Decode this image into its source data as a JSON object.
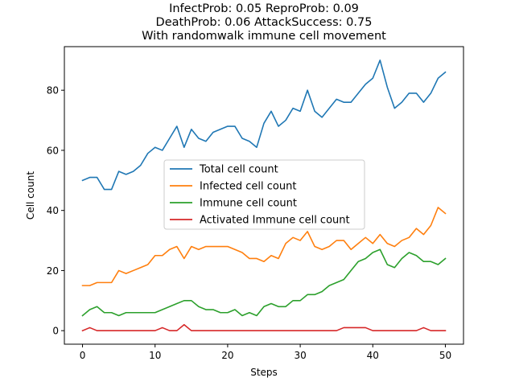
{
  "chart_data": {
    "type": "line",
    "title": [
      "InfectProb: 0.05 ReproProb: 0.09",
      "DeathProb: 0.06 AttackSuccess: 0.75",
      "With randomwalk immune cell movement"
    ],
    "xlabel": "Steps",
    "ylabel": "Cell count",
    "xlim": [
      -2.5,
      52.5
    ],
    "ylim": [
      -4.5,
      94.5
    ],
    "xticks": [
      0,
      10,
      20,
      30,
      40,
      50
    ],
    "yticks": [
      0,
      20,
      40,
      60,
      80
    ],
    "grid": false,
    "legend_position": "center",
    "x": [
      0,
      1,
      2,
      3,
      4,
      5,
      6,
      7,
      8,
      9,
      10,
      11,
      12,
      13,
      14,
      15,
      16,
      17,
      18,
      19,
      20,
      21,
      22,
      23,
      24,
      25,
      26,
      27,
      28,
      29,
      30,
      31,
      32,
      33,
      34,
      35,
      36,
      37,
      38,
      39,
      40,
      41,
      42,
      43,
      44,
      45,
      46,
      47,
      48,
      49,
      50
    ],
    "series": [
      {
        "name": "Total cell count",
        "color": "#1f77b4",
        "values": [
          50,
          51,
          51,
          47,
          47,
          53,
          52,
          53,
          55,
          59,
          61,
          60,
          64,
          68,
          61,
          67,
          64,
          63,
          66,
          67,
          68,
          68,
          64,
          63,
          61,
          69,
          73,
          68,
          70,
          74,
          73,
          80,
          73,
          71,
          74,
          77,
          76,
          76,
          79,
          82,
          84,
          90,
          81,
          74,
          76,
          79,
          79,
          76,
          79,
          84,
          86
        ]
      },
      {
        "name": "Infected cell count",
        "color": "#ff7f0e",
        "values": [
          15,
          15,
          16,
          16,
          16,
          20,
          19,
          20,
          21,
          22,
          25,
          25,
          27,
          28,
          24,
          28,
          27,
          28,
          28,
          28,
          28,
          27,
          26,
          24,
          24,
          23,
          25,
          24,
          29,
          31,
          30,
          33,
          28,
          27,
          28,
          30,
          30,
          27,
          29,
          31,
          29,
          32,
          29,
          28,
          30,
          31,
          34,
          32,
          35,
          41,
          39
        ]
      },
      {
        "name": "Immune cell count",
        "color": "#2ca02c",
        "values": [
          5,
          7,
          8,
          6,
          6,
          5,
          6,
          6,
          6,
          6,
          6,
          7,
          8,
          9,
          10,
          10,
          8,
          7,
          7,
          6,
          6,
          7,
          5,
          6,
          5,
          8,
          9,
          8,
          8,
          10,
          10,
          12,
          12,
          13,
          15,
          16,
          17,
          20,
          23,
          24,
          26,
          27,
          22,
          21,
          24,
          26,
          25,
          23,
          23,
          22,
          24
        ]
      },
      {
        "name": "Activated Immune cell count",
        "color": "#d62728",
        "values": [
          0,
          1,
          0,
          0,
          0,
          0,
          0,
          0,
          0,
          0,
          0,
          1,
          0,
          0,
          2,
          0,
          0,
          0,
          0,
          0,
          0,
          0,
          0,
          0,
          0,
          0,
          0,
          0,
          0,
          0,
          0,
          0,
          0,
          0,
          0,
          0,
          1,
          1,
          1,
          1,
          0,
          0,
          0,
          0,
          0,
          0,
          0,
          1,
          0,
          0,
          0
        ]
      }
    ]
  }
}
